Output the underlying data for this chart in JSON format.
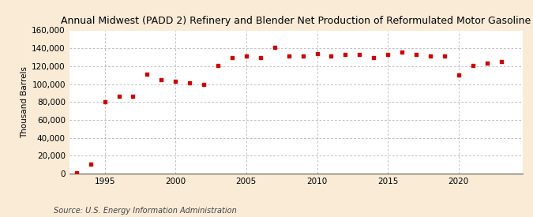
{
  "title": "Annual Midwest (PADD 2) Refinery and Blender Net Production of Reformulated Motor Gasoline",
  "ylabel": "Thousand Barrels",
  "source": "Source: U.S. Energy Information Administration",
  "background_color": "#faebd7",
  "plot_background_color": "#ffffff",
  "marker_color": "#cc0000",
  "grid_color": "#aaaaaa",
  "years": [
    1993,
    1994,
    1995,
    1996,
    1997,
    1998,
    1999,
    2000,
    2001,
    2002,
    2003,
    2004,
    2005,
    2006,
    2007,
    2008,
    2009,
    2010,
    2011,
    2012,
    2013,
    2014,
    2015,
    2016,
    2017,
    2018,
    2019,
    2020,
    2021,
    2022,
    2023
  ],
  "values": [
    700,
    11000,
    80000,
    86000,
    86000,
    111000,
    105000,
    103000,
    101000,
    100000,
    121000,
    130000,
    131000,
    130000,
    141000,
    131000,
    131000,
    134000,
    131000,
    133000,
    133000,
    130000,
    133000,
    136000,
    133000,
    131000,
    131000,
    110000,
    121000,
    123000,
    125000
  ],
  "ylim": [
    0,
    160000
  ],
  "yticks": [
    0,
    20000,
    40000,
    60000,
    80000,
    100000,
    120000,
    140000,
    160000
  ],
  "xticks": [
    1995,
    2000,
    2005,
    2010,
    2015,
    2020
  ],
  "title_fontsize": 9.0,
  "axis_fontsize": 7.5,
  "source_fontsize": 7.0
}
